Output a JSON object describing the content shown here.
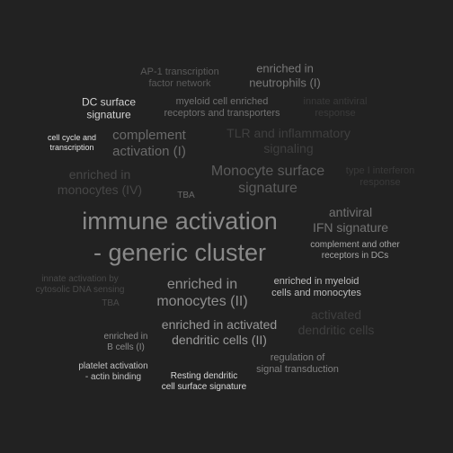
{
  "words": [
    {
      "text": "immune activation\n- generic cluster"
    },
    {
      "text": "Monocyte surface\nsignature"
    },
    {
      "text": "enriched in\nmonocytes (II)"
    },
    {
      "text": "complement\nactivation (I)"
    },
    {
      "text": "enriched in activated\ndendritic cells (II)"
    },
    {
      "text": "antiviral\nIFN signature"
    },
    {
      "text": "enriched in\nneutrophils (I)"
    },
    {
      "text": "TLR and inflammatory\nsignaling"
    },
    {
      "text": "enriched in\nmonocytes (IV)"
    },
    {
      "text": "activated\ndendritic cells"
    },
    {
      "text": "DC surface\nsignature"
    },
    {
      "text": "enriched in myeloid\ncells and monocytes"
    },
    {
      "text": "myeloid cell enriched\nreceptors and transporters"
    },
    {
      "text": "AP-1 transcription\nfactor network"
    },
    {
      "text": "complement and other\nreceptors in DCs"
    },
    {
      "text": "regulation of\nsignal transduction"
    },
    {
      "text": "platelet activation\n- actin binding"
    },
    {
      "text": "Resting dendritic\ncell surface signature"
    },
    {
      "text": "cell cycle and\ntranscription"
    },
    {
      "text": "enriched in\nB cells (I)"
    },
    {
      "text": "innate antiviral\nresponse"
    },
    {
      "text": "type I interferon\nresponse"
    },
    {
      "text": "innate activation by\ncytosolic DNA sensing"
    },
    {
      "text": "TBA"
    },
    {
      "text": "TBA"
    }
  ]
}
